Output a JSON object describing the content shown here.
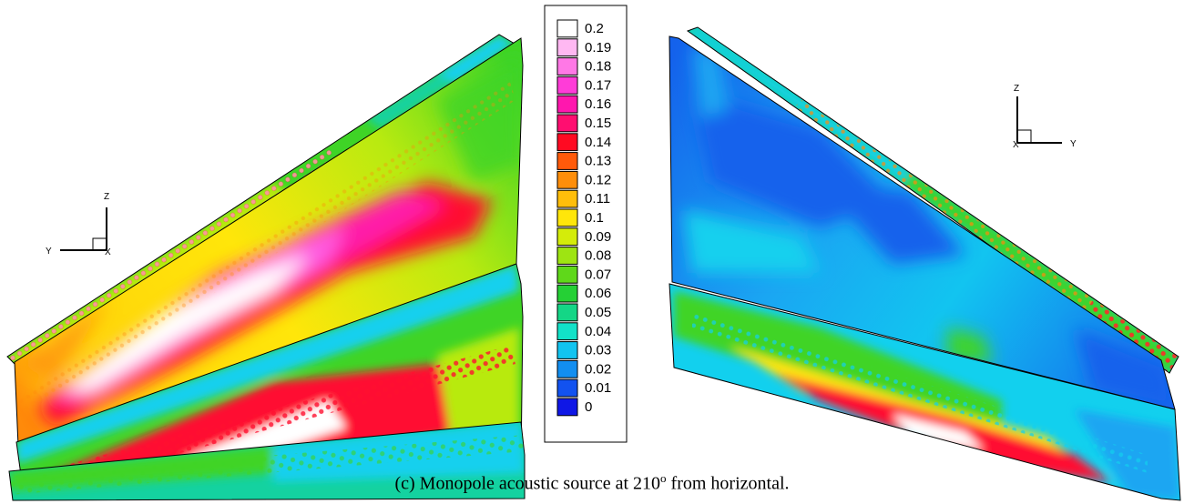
{
  "caption": {
    "prefix": "(c) Monopole acoustic source at 210",
    "sup": "o",
    "suffix": " from horizontal."
  },
  "legend": {
    "levels": [
      {
        "label": "0.2",
        "color": "#ffffff"
      },
      {
        "label": "0.19",
        "color": "#ffb8f2"
      },
      {
        "label": "0.18",
        "color": "#ff78e6"
      },
      {
        "label": "0.17",
        "color": "#ff3cd8"
      },
      {
        "label": "0.16",
        "color": "#ff17ae"
      },
      {
        "label": "0.15",
        "color": "#ff0e70"
      },
      {
        "label": "0.14",
        "color": "#ff0a22"
      },
      {
        "label": "0.13",
        "color": "#ff5a0a"
      },
      {
        "label": "0.12",
        "color": "#ff8e0a"
      },
      {
        "label": "0.11",
        "color": "#ffbe0a"
      },
      {
        "label": "0.1",
        "color": "#ffe60a"
      },
      {
        "label": "0.09",
        "color": "#d4ec0a"
      },
      {
        "label": "0.08",
        "color": "#9ee412"
      },
      {
        "label": "0.07",
        "color": "#5fd81a"
      },
      {
        "label": "0.06",
        "color": "#25d035"
      },
      {
        "label": "0.05",
        "color": "#14d686"
      },
      {
        "label": "0.04",
        "color": "#12e2c8"
      },
      {
        "label": "0.03",
        "color": "#12c4f0"
      },
      {
        "label": "0.02",
        "color": "#128ef0"
      },
      {
        "label": "0.01",
        "color": "#1252f0"
      },
      {
        "label": "0",
        "color": "#0f17e6"
      }
    ]
  },
  "triads": {
    "left": {
      "vertical": "Z",
      "horizontal": "Y",
      "normal": "X"
    },
    "right": {
      "vertical": "Z",
      "horizontal": "Y",
      "normal": "X"
    }
  },
  "colors": {
    "white": "#ffffff",
    "pink": "#ff5ce0",
    "magenta": "#ff1aa8",
    "red": "#ff1030",
    "orange": "#ff8a0a",
    "yellow": "#ffe60a",
    "yellowgreen": "#b8ea10",
    "green": "#3fd426",
    "teal": "#14d2a0",
    "cyan": "#12d0ee",
    "lightblue": "#1aa6f2",
    "blue": "#1462ec"
  }
}
